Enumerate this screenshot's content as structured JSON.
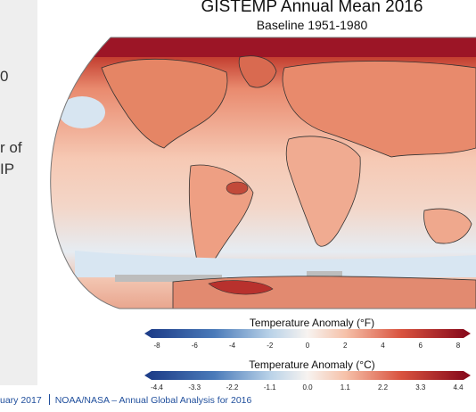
{
  "slide": {
    "left_fragments": [
      "0",
      "r of",
      "IP"
    ],
    "footer_date": "uary 2017",
    "footer_source": "NOAA/NASA – Annual  Global  Analysis  for  2016"
  },
  "map": {
    "title": "GISTEMP Annual Mean 2016",
    "subtitle": "Baseline 1951-1980",
    "projection": "robinson",
    "colors": {
      "deep_blue": "#1f4e9c",
      "light_blue": "#cfe0ef",
      "white": "#f7f3f0",
      "light_red": "#f6c9b4",
      "mid_red": "#e98a6e",
      "dark_red": "#b2182b",
      "deep_red": "#8b0d1d",
      "missing_gray": "#bdbdbd"
    }
  },
  "legend_f": {
    "title": "Temperature Anomaly (°F)",
    "ticks": [
      "-8",
      "-6",
      "-4",
      "-2",
      "0",
      "2",
      "4",
      "6",
      "8"
    ]
  },
  "legend_c": {
    "title": "Temperature Anomaly (°C)",
    "ticks": [
      "-4.4",
      "-3.3",
      "-2.2",
      "-1.1",
      "0.0",
      "1.1",
      "2.2",
      "3.3",
      "4.4"
    ]
  }
}
